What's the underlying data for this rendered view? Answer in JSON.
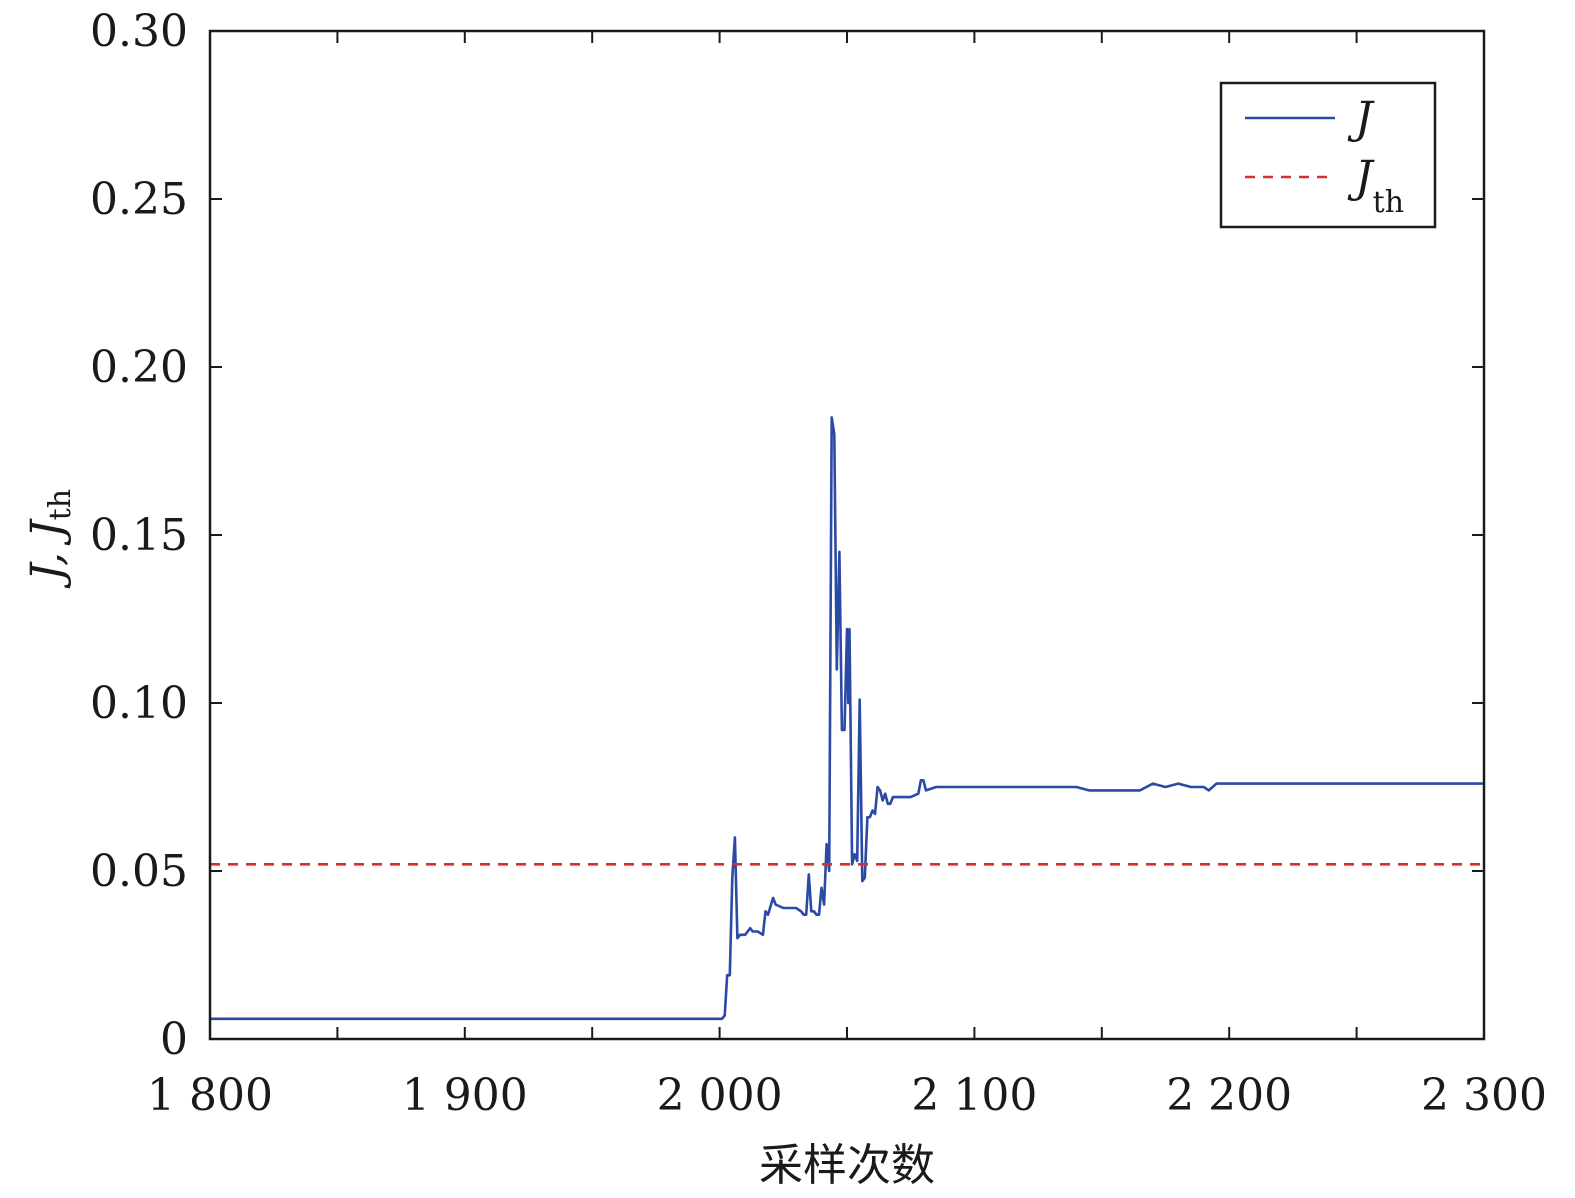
{
  "chart_data": {
    "type": "line",
    "xlabel": "采样次数",
    "ylabel": {
      "main": "J, J",
      "sub": "th"
    },
    "xlim": [
      1800,
      2300
    ],
    "ylim": [
      0,
      0.3
    ],
    "x_ticks": [
      1800,
      1850,
      1900,
      1950,
      2000,
      2050,
      2100,
      2150,
      2200,
      2250,
      2300
    ],
    "x_tick_labels": [
      {
        "value": 1800,
        "label": "1 800"
      },
      {
        "value": 1900,
        "label": "1 900"
      },
      {
        "value": 2000,
        "label": "2 000"
      },
      {
        "value": 2100,
        "label": "2 100"
      },
      {
        "value": 2200,
        "label": "2 200"
      },
      {
        "value": 2300,
        "label": "2 300"
      }
    ],
    "y_ticks": [
      0,
      0.05,
      0.1,
      0.15,
      0.2,
      0.25,
      0.3
    ],
    "y_tick_labels": [
      "0",
      "0.05",
      "0.10",
      "0.15",
      "0.20",
      "0.25",
      "0.30"
    ],
    "grid": false,
    "legend_position": "top-right",
    "series": [
      {
        "name": "J",
        "color": "#2b4aa6",
        "style": "solid",
        "x": [
          1800,
          2001,
          2002,
          2003,
          2004,
          2005,
          2006,
          2007,
          2008,
          2010,
          2012,
          2013,
          2015,
          2017,
          2018,
          2019,
          2021,
          2022,
          2025,
          2027,
          2028,
          2030,
          2032,
          2033,
          2034,
          2035,
          2036,
          2037,
          2038,
          2039,
          2040,
          2041,
          2042,
          2043,
          2044,
          2045,
          2046,
          2047,
          2048,
          2049,
          2050,
          2050.5,
          2051,
          2052,
          2053,
          2054,
          2055,
          2056,
          2057,
          2058,
          2059,
          2060,
          2061,
          2062,
          2063,
          2064,
          2065,
          2066,
          2067,
          2068,
          2072,
          2075,
          2078,
          2079,
          2080,
          2081,
          2085,
          2090,
          2100,
          2120,
          2130,
          2140,
          2145,
          2150,
          2160,
          2165,
          2170,
          2175,
          2180,
          2185,
          2190,
          2192,
          2195,
          2200,
          2250,
          2300
        ],
        "y": [
          0.006,
          0.006,
          0.007,
          0.019,
          0.019,
          0.048,
          0.06,
          0.03,
          0.031,
          0.031,
          0.033,
          0.032,
          0.032,
          0.031,
          0.038,
          0.037,
          0.042,
          0.04,
          0.039,
          0.039,
          0.039,
          0.039,
          0.038,
          0.037,
          0.037,
          0.049,
          0.038,
          0.038,
          0.037,
          0.037,
          0.045,
          0.04,
          0.058,
          0.05,
          0.185,
          0.18,
          0.11,
          0.145,
          0.092,
          0.092,
          0.122,
          0.1,
          0.122,
          0.052,
          0.055,
          0.053,
          0.101,
          0.047,
          0.048,
          0.066,
          0.066,
          0.068,
          0.067,
          0.075,
          0.074,
          0.071,
          0.073,
          0.07,
          0.07,
          0.072,
          0.072,
          0.072,
          0.073,
          0.077,
          0.077,
          0.074,
          0.075,
          0.075,
          0.075,
          0.075,
          0.075,
          0.075,
          0.074,
          0.074,
          0.074,
          0.074,
          0.076,
          0.075,
          0.076,
          0.075,
          0.075,
          0.074,
          0.076,
          0.076,
          0.076,
          0.076
        ]
      },
      {
        "name": "J",
        "name_sub": "th",
        "color": "#d32f2f",
        "style": "dashed",
        "x": [
          1800,
          2300
        ],
        "y": [
          0.052,
          0.052
        ]
      }
    ]
  }
}
